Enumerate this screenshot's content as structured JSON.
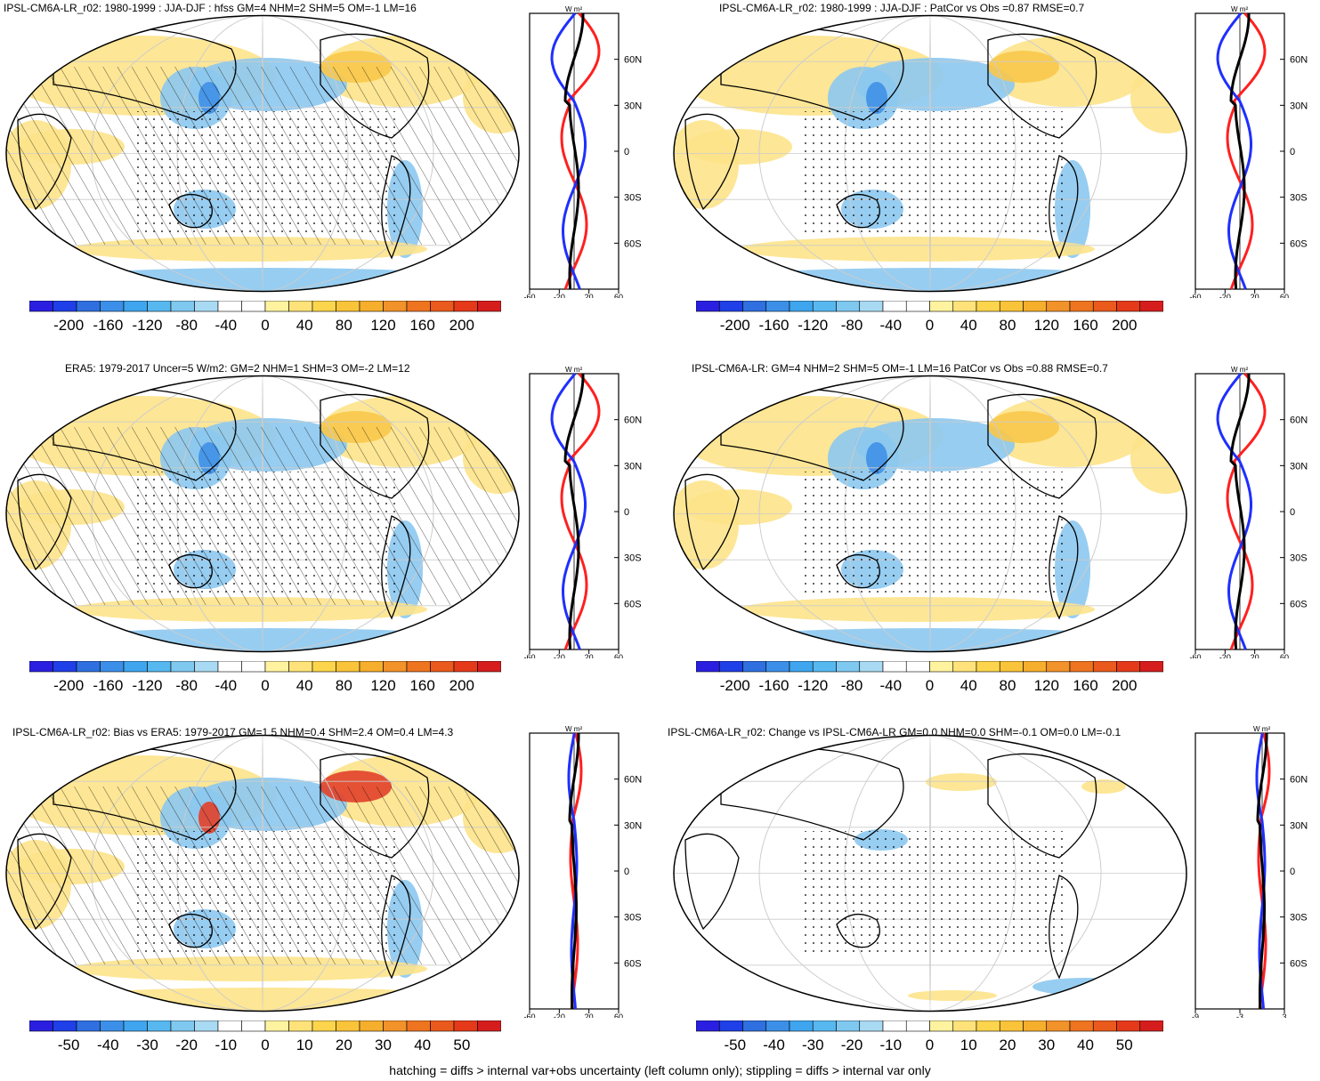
{
  "panels": [
    {
      "title": "IPSL-CM6A-LR_r02: 1980-1999 : JJA-DJF : hfss GM=4 NHM=2 SHM=5 OM=-1 LM=16",
      "hatched": true,
      "colorbar": {
        "labels": [
          "-200",
          "-160",
          "-120",
          "-80",
          "-40",
          "0",
          "40",
          "80",
          "120",
          "160",
          "200"
        ]
      },
      "profile": {
        "lat_labels": [
          "60N",
          "30N",
          "0",
          "30S",
          "60S"
        ],
        "x_labels": [
          "-60",
          "-20",
          "20",
          "60"
        ],
        "unit": "W m²"
      }
    },
    {
      "title": "IPSL-CM6A-LR_r02: 1980-1999 : JJA-DJF : PatCor vs Obs =0.87 RMSE=0.7",
      "hatched": false,
      "colorbar": {
        "labels": [
          "-200",
          "-160",
          "-120",
          "-80",
          "-40",
          "0",
          "40",
          "80",
          "120",
          "160",
          "200"
        ]
      },
      "profile": {
        "lat_labels": [
          "60N",
          "30N",
          "0",
          "30S",
          "60S"
        ],
        "x_labels": [
          "-60",
          "-20",
          "20",
          "60"
        ],
        "unit": "W m²"
      }
    },
    {
      "title": "ERA5: 1979-2017 Uncer=5 W/m2: GM=2 NHM=1 SHM=3 OM=-2 LM=12",
      "hatched": true,
      "colorbar": {
        "labels": [
          "-200",
          "-160",
          "-120",
          "-80",
          "-40",
          "0",
          "40",
          "80",
          "120",
          "160",
          "200"
        ]
      },
      "profile": {
        "lat_labels": [
          "60N",
          "30N",
          "0",
          "30S",
          "60S"
        ],
        "x_labels": [
          "-60",
          "-20",
          "20",
          "60"
        ],
        "unit": "W m²"
      }
    },
    {
      "title": "IPSL-CM6A-LR: GM=4 NHM=2 SHM=5 OM=-1 LM=16 PatCor vs Obs =0.88 RMSE=0.7",
      "hatched": false,
      "colorbar": {
        "labels": [
          "-200",
          "-160",
          "-120",
          "-80",
          "-40",
          "0",
          "40",
          "80",
          "120",
          "160",
          "200"
        ]
      },
      "profile": {
        "lat_labels": [
          "60N",
          "30N",
          "0",
          "30S",
          "60S"
        ],
        "x_labels": [
          "-60",
          "-20",
          "20",
          "60"
        ],
        "unit": "W m²"
      }
    },
    {
      "title": "IPSL-CM6A-LR_r02: Bias vs ERA5: 1979-2017 GM=1.5 NHM=0.4 SHM=2.4 OM=0.4 LM=4.3",
      "hatched": true,
      "colorbar": {
        "labels": [
          "-50",
          "-40",
          "-30",
          "-20",
          "-10",
          "0",
          "10",
          "20",
          "30",
          "40",
          "50"
        ]
      },
      "profile": {
        "lat_labels": [
          "60N",
          "30N",
          "0",
          "30S",
          "60S"
        ],
        "x_labels": [
          "-60",
          "-20",
          "20",
          "60"
        ],
        "unit": "W m²"
      }
    },
    {
      "title": "IPSL-CM6A-LR_r02: Change vs IPSL-CM6A-LR GM=0.0 NHM=0.0 SHM=-0.1 OM=0.0 LM=-0.1",
      "hatched": false,
      "colorbar": {
        "labels": [
          "-50",
          "-40",
          "-30",
          "-20",
          "-10",
          "0",
          "10",
          "20",
          "30",
          "40",
          "50"
        ]
      },
      "profile": {
        "lat_labels": [
          "60N",
          "30N",
          "0",
          "30S",
          "60S"
        ],
        "x_labels": [
          "-9",
          "-3",
          "3"
        ],
        "unit": "W m²"
      }
    }
  ],
  "colorbar_colors": [
    "#2a1fe0",
    "#1f3fe8",
    "#2f6fe0",
    "#3c8fe8",
    "#3fa5ee",
    "#57b8f0",
    "#7fc8f0",
    "#a9daf3",
    "#ffffff",
    "#ffffff",
    "#fff3a0",
    "#ffe37a",
    "#fdd54c",
    "#f9c43a",
    "#f6ae2d",
    "#f2922a",
    "#ee7420",
    "#ea5a1c",
    "#e53a1a",
    "#d61d1d"
  ],
  "footer": "hatching = diffs > internal var+obs uncertainty (left column only); stippling = diffs > internal var only"
}
